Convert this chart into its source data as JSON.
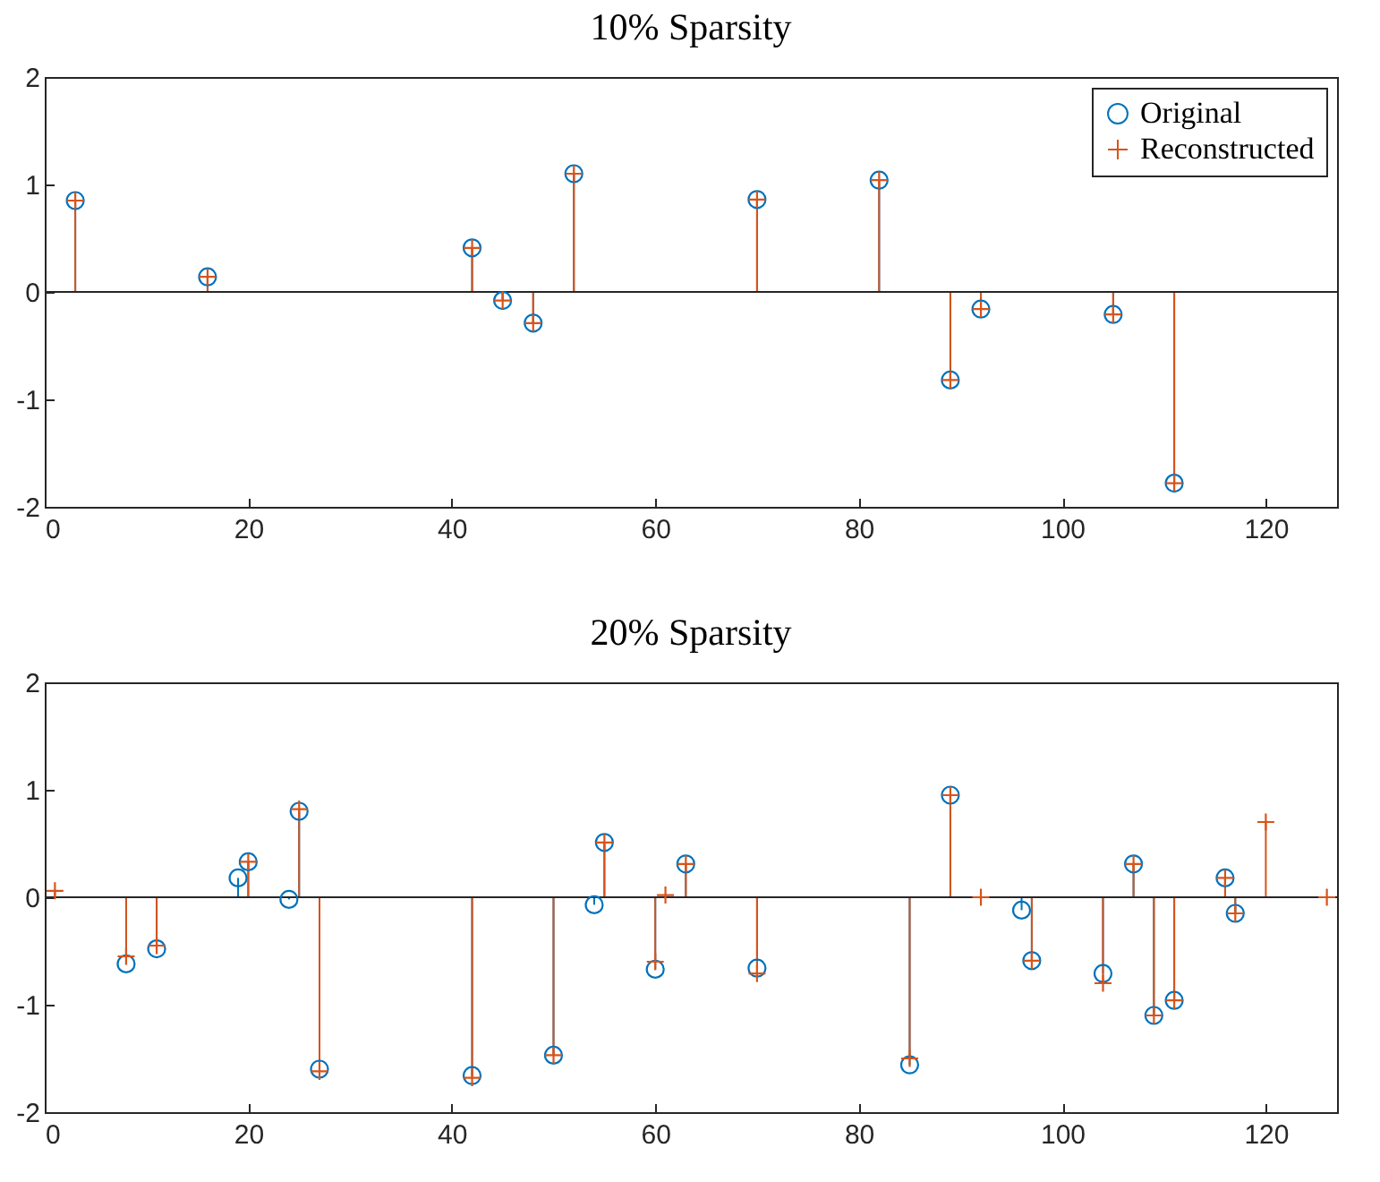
{
  "chart_data": [
    {
      "type": "lollipop",
      "title": "10% Sparsity",
      "ref_lines": [
        {
          "axis": "y",
          "value": 0,
          "color": "#262626"
        }
      ],
      "xlim": [
        0,
        127
      ],
      "xticks": [
        0,
        20,
        40,
        60,
        80,
        100,
        120
      ],
      "ylim": [
        -2,
        2
      ],
      "yticks": [
        -2,
        -1,
        0,
        1,
        2
      ],
      "grid": false,
      "legend": "top right",
      "series": [
        {
          "name": "Original",
          "color": "#0072bd",
          "marker": "circle",
          "x": [
            3,
            16,
            42,
            45,
            48,
            52,
            70,
            82,
            89,
            92,
            105,
            111
          ],
          "values": [
            0.85,
            0.14,
            0.41,
            -0.08,
            -0.29,
            1.1,
            0.86,
            1.04,
            -0.82,
            -0.16,
            -0.21,
            -1.78
          ]
        },
        {
          "name": "Reconstructed",
          "color": "#d95319",
          "marker": "cross",
          "x": [
            3,
            16,
            42,
            45,
            48,
            52,
            70,
            82,
            89,
            92,
            105,
            111
          ],
          "values": [
            0.85,
            0.14,
            0.41,
            -0.08,
            -0.29,
            1.1,
            0.86,
            1.04,
            -0.82,
            -0.16,
            -0.21,
            -1.78
          ]
        }
      ]
    },
    {
      "type": "lollipop",
      "title": "20% Sparsity",
      "ref_lines": [
        {
          "axis": "y",
          "value": 0,
          "color": "#262626"
        }
      ],
      "xlim": [
        0,
        127
      ],
      "xticks": [
        0,
        20,
        40,
        60,
        80,
        100,
        120
      ],
      "ylim": [
        -2,
        2
      ],
      "yticks": [
        -2,
        -1,
        0,
        1,
        2
      ],
      "grid": false,
      "legend": "top right",
      "series": [
        {
          "name": "Original",
          "color": "#0072bd",
          "marker": "circle",
          "x": [
            8,
            11,
            19,
            20,
            24,
            25,
            27,
            42,
            50,
            54,
            55,
            60,
            63,
            70,
            85,
            89,
            96,
            97,
            104,
            107,
            109,
            111,
            116,
            117
          ],
          "values": [
            -0.62,
            -0.48,
            0.18,
            0.33,
            -0.02,
            0.8,
            -1.6,
            -1.66,
            -1.47,
            -0.07,
            0.51,
            -0.67,
            0.31,
            -0.66,
            -1.56,
            0.95,
            -0.12,
            -0.59,
            -0.71,
            0.31,
            -1.1,
            -0.96,
            0.18,
            -0.15
          ]
        },
        {
          "name": "Reconstructed",
          "color": "#d95319",
          "marker": "cross",
          "x": [
            1,
            8,
            11,
            20,
            25,
            27,
            42,
            50,
            55,
            60,
            61,
            63,
            70,
            85,
            89,
            92,
            97,
            104,
            107,
            109,
            111,
            116,
            117,
            120,
            126
          ],
          "values": [
            0.06,
            -0.55,
            -0.45,
            0.33,
            0.82,
            -1.62,
            -1.68,
            -1.47,
            0.51,
            -0.6,
            0.02,
            0.31,
            -0.71,
            -1.5,
            0.95,
            0,
            -0.59,
            -0.8,
            0.31,
            -1.1,
            -0.96,
            0.18,
            -0.15,
            0.7,
            0
          ]
        }
      ]
    }
  ]
}
